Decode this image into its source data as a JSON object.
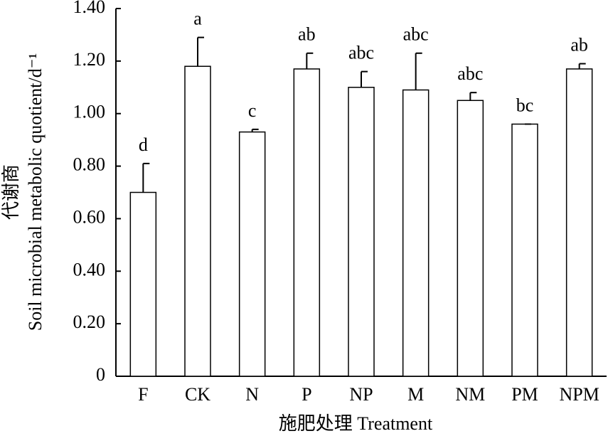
{
  "chart_data": {
    "type": "bar",
    "xlabel": "施肥处理 Treatment",
    "ylabel": [
      "代谢商",
      "Soil microbial metabolic quotient/d⁻¹"
    ],
    "categories": [
      "F",
      "CK",
      "N",
      "P",
      "NP",
      "M",
      "NM",
      "PM",
      "NPM"
    ],
    "values": [
      0.7,
      1.18,
      0.93,
      1.17,
      1.1,
      1.09,
      1.05,
      0.96,
      1.17
    ],
    "errors": [
      0.11,
      0.11,
      0.01,
      0.06,
      0.06,
      0.14,
      0.03,
      0,
      0.02
    ],
    "letters": [
      "d",
      "a",
      "c",
      "ab",
      "abc",
      "abc",
      "abc",
      "bc",
      "ab"
    ],
    "color": "#ffffff",
    "ylim": [
      0,
      1.4
    ],
    "yticks": [
      0,
      {
        "value": 0.2,
        "label": "0.20"
      },
      {
        "value": 0.4,
        "label": "0.40"
      },
      {
        "value": 0.6,
        "label": "0.60"
      },
      {
        "value": 0.8,
        "label": "0.80"
      },
      {
        "value": 1.0,
        "label": "1.00"
      },
      {
        "value": 1.2,
        "label": "1.20"
      },
      {
        "value": 1.4,
        "label": "1.40"
      }
    ],
    "grid": false
  }
}
